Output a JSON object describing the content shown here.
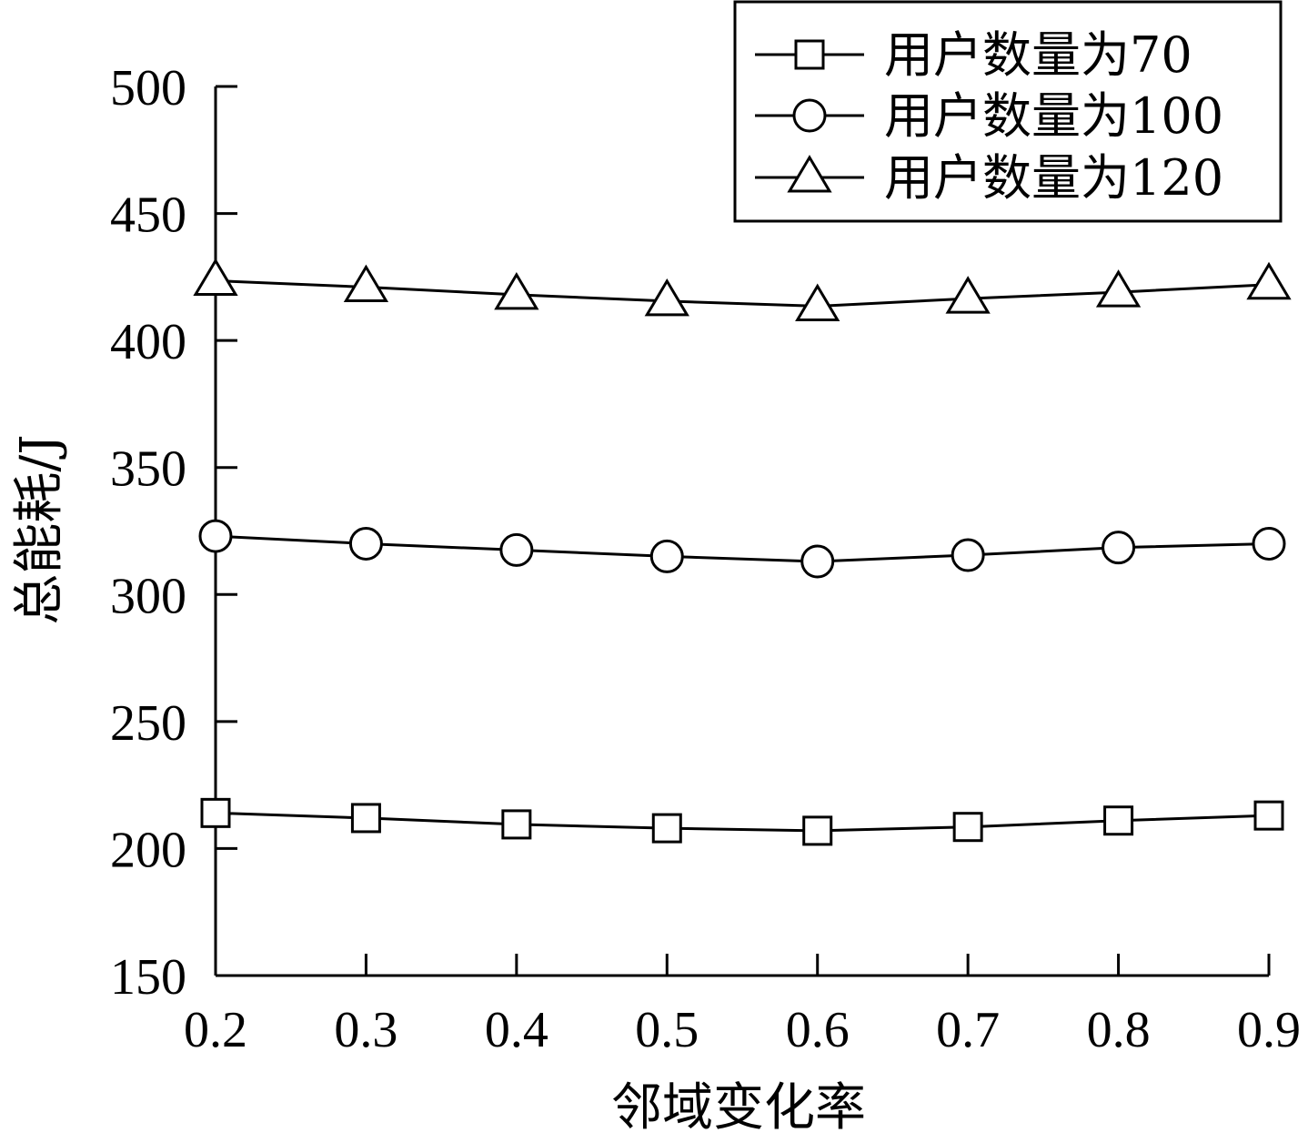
{
  "chart_data": {
    "type": "line",
    "xlabel": "邻域变化率",
    "ylabel": "总能耗/J",
    "x": [
      0.2,
      0.3,
      0.4,
      0.5,
      0.6,
      0.7,
      0.8,
      0.9
    ],
    "x_tick_labels": [
      "0.2",
      "0.3",
      "0.4",
      "0.5",
      "0.6",
      "0.7",
      "0.8",
      "0.9"
    ],
    "ylim": [
      150,
      500
    ],
    "y_ticks": [
      150,
      200,
      250,
      300,
      350,
      400,
      450,
      500
    ],
    "y_tick_labels": [
      "150",
      "200",
      "250",
      "300",
      "350",
      "400",
      "450",
      "500"
    ],
    "grid": false,
    "legend_position": "top-right",
    "series": [
      {
        "name": "用户数量为70",
        "marker": "square",
        "color": "#000000",
        "values": [
          214,
          212,
          209.5,
          208,
          207,
          208.5,
          211,
          213
        ]
      },
      {
        "name": "用户数量为100",
        "marker": "circle",
        "color": "#000000",
        "values": [
          323,
          320,
          317.5,
          315,
          313,
          315.5,
          318.5,
          320
        ]
      },
      {
        "name": "用户数量为120",
        "marker": "triangle",
        "color": "#000000",
        "values": [
          423.5,
          421,
          418,
          415.5,
          413.5,
          416.5,
          419,
          422
        ]
      }
    ]
  }
}
